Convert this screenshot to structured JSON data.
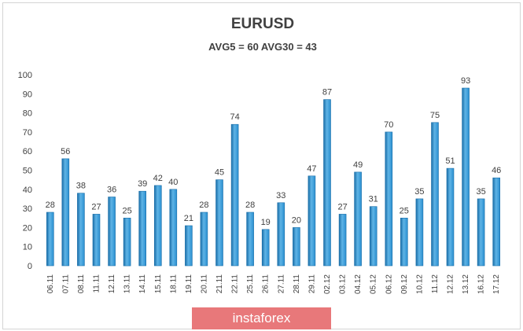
{
  "chart_data": {
    "type": "bar",
    "title": "EURUSD",
    "subtitle": "AVG5 = 60 AVG30 = 43",
    "categories": [
      "06.11",
      "07.11",
      "08.11",
      "11.11",
      "12.11",
      "13.11",
      "14.11",
      "15.11",
      "18.11",
      "19.11",
      "20.11",
      "21.11",
      "22.11",
      "25.11",
      "26.11",
      "27.11",
      "28.11",
      "29.11",
      "02.12",
      "03.12",
      "04.12",
      "05.12",
      "06.12",
      "09.12",
      "10.12",
      "11.12",
      "12.12",
      "13.12",
      "16.12",
      "17.12"
    ],
    "values": [
      28,
      56,
      38,
      27,
      36,
      25,
      39,
      42,
      40,
      21,
      28,
      45,
      74,
      28,
      19,
      33,
      20,
      47,
      87,
      27,
      49,
      31,
      70,
      25,
      35,
      75,
      51,
      93,
      35,
      46
    ],
    "ylim": [
      0,
      100
    ],
    "yticks": [
      0,
      10,
      20,
      30,
      40,
      50,
      60,
      70,
      80,
      90,
      100
    ],
    "grid": false,
    "legend": "none",
    "bar_color": "#2a8fd0",
    "bar_color_light": "#5fb4e6",
    "bar_color_dark": "#1a6ea8"
  },
  "watermark": {
    "text": "instaforex",
    "color": "#e8787a"
  }
}
